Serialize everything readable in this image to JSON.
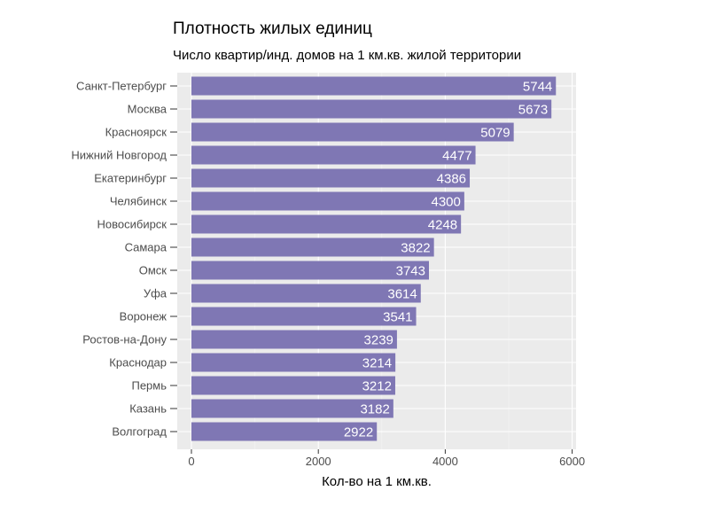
{
  "chart_data": {
    "type": "bar",
    "orientation": "horizontal",
    "title": "Плотность жилых единиц",
    "subtitle": "Число квартир/инд. домов на 1 км.кв. жилой территории",
    "xlabel": "Кол-во на 1 км.кв.",
    "ylabel": "",
    "xlim": [
      0,
      6000
    ],
    "xticks": [
      0,
      2000,
      4000,
      6000
    ],
    "xtick_labels": [
      "0",
      "2000",
      "4000",
      "6000"
    ],
    "grid": true,
    "bar_color": "#7f77b4",
    "panel_color": "#ebebeb",
    "categories": [
      "Санкт-Петербург",
      "Москва",
      "Красноярск",
      "Нижний Новгород",
      "Екатеринбург",
      "Челябинск",
      "Новосибирск",
      "Самара",
      "Омск",
      "Уфа",
      "Воронеж",
      "Ростов-на-Дону",
      "Краснодар",
      "Пермь",
      "Казань",
      "Волгоград"
    ],
    "values": [
      5744,
      5673,
      5079,
      4477,
      4386,
      4300,
      4248,
      3822,
      3743,
      3614,
      3541,
      3239,
      3214,
      3212,
      3182,
      2922
    ]
  }
}
